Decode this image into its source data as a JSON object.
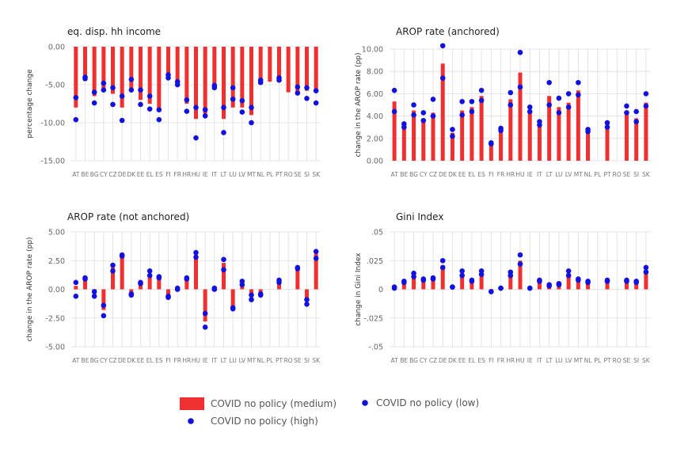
{
  "colors": {
    "bar": "#f03030",
    "dot": "#1212e0",
    "grid": "#dddddd"
  },
  "countries": [
    "AT",
    "BE",
    "BG",
    "CY",
    "CZ",
    "DE",
    "DK",
    "EE",
    "EL",
    "ES",
    "FI",
    "FR",
    "HR",
    "HU",
    "IE",
    "IT",
    "LT",
    "LU",
    "LV",
    "MT",
    "NL",
    "PL",
    "PT",
    "RO",
    "SE",
    "SI",
    "SK"
  ],
  "legend": {
    "medium": "COVID no policy (medium)",
    "low": "COVID no policy (low)",
    "high": "COVID no policy (high)"
  },
  "chart_data": [
    {
      "type": "bar",
      "title": "eq. disp. hh income",
      "xlabel": "",
      "ylabel": "percentage change",
      "ylim": [
        -15,
        0
      ],
      "yticks": [
        0,
        -5,
        -10,
        -15
      ],
      "ytick_labels": [
        "0.00",
        "-5.00",
        "-10.00",
        "-15.00"
      ],
      "grid": true,
      "categories": [
        "AT",
        "BE",
        "BG",
        "CY",
        "CZ",
        "DE",
        "DK",
        "EE",
        "EL",
        "ES",
        "FI",
        "FR",
        "HR",
        "HU",
        "IE",
        "IT",
        "LT",
        "LU",
        "LV",
        "MT",
        "NL",
        "PL",
        "PT",
        "RO",
        "SE",
        "SI",
        "SK"
      ],
      "series": [
        {
          "name": "COVID no policy (medium)",
          "values": [
            -8.0,
            -4.5,
            -6.5,
            -5.5,
            -6.2,
            -8.0,
            -5.5,
            -7.0,
            -7.5,
            -8.5,
            -4.0,
            -5.0,
            -7.5,
            -9.5,
            -8.8,
            -5.5,
            -9.5,
            -8.0,
            -8.0,
            -9.0,
            -5.0,
            -4.6,
            -4.3,
            -6.0,
            -6.2,
            -5.8,
            -6.0
          ]
        },
        {
          "name": "COVID no policy (low)",
          "values": [
            -6.7,
            -4.0,
            -6.0,
            -4.8,
            -5.4,
            -6.5,
            -4.3,
            -5.7,
            -6.5,
            -8.3,
            -3.7,
            -4.6,
            -7.0,
            -8.0,
            -8.3,
            -5.1,
            -8.0,
            -5.4,
            -7.1,
            -8.0,
            -4.4,
            null,
            -4.1,
            null,
            -5.3,
            -5.4,
            -5.8
          ]
        },
        {
          "name": "COVID no policy (high)",
          "values": [
            -9.6,
            -4.2,
            -7.4,
            -5.7,
            -7.6,
            -9.7,
            -5.7,
            -7.6,
            -8.2,
            -9.6,
            -4.1,
            -5.0,
            -8.5,
            -12.0,
            -9.1,
            -5.4,
            -11.3,
            -6.9,
            -8.6,
            -10.0,
            -4.7,
            null,
            -4.4,
            null,
            -6.1,
            -6.8,
            -7.4
          ]
        }
      ]
    },
    {
      "type": "bar",
      "title": "AROP rate (anchored)",
      "xlabel": "",
      "ylabel": "change in the AROP rate (pp)",
      "ylim": [
        0,
        10
      ],
      "yticks": [
        0,
        2,
        4,
        6,
        8,
        10
      ],
      "ytick_labels": [
        "0.00",
        "2.00",
        "4.00",
        "6.00",
        "8.00",
        "10.00"
      ],
      "grid": true,
      "categories": [
        "AT",
        "BE",
        "BG",
        "CY",
        "CZ",
        "DE",
        "DK",
        "EE",
        "EL",
        "ES",
        "FI",
        "FR",
        "HR",
        "HU",
        "IE",
        "IT",
        "LT",
        "LU",
        "LV",
        "MT",
        "NL",
        "PL",
        "PT",
        "RO",
        "SE",
        "SI",
        "SK"
      ],
      "series": [
        {
          "name": "COVID no policy (medium)",
          "values": [
            5.3,
            2.9,
            4.5,
            3.5,
            4.3,
            8.7,
            2.5,
            4.5,
            4.8,
            5.8,
            1.4,
            2.7,
            5.5,
            7.9,
            4.5,
            3.3,
            5.8,
            4.8,
            5.2,
            6.3,
            2.7,
            null,
            3.3,
            null,
            4.4,
            3.8,
            5.2
          ]
        },
        {
          "name": "COVID no policy (low)",
          "values": [
            4.4,
            3.0,
            4.1,
            3.6,
            4.0,
            7.4,
            2.2,
            4.1,
            4.4,
            5.4,
            1.5,
            2.7,
            5.0,
            6.6,
            4.4,
            3.2,
            5.0,
            4.3,
            4.8,
            5.9,
            2.6,
            null,
            3.0,
            null,
            4.3,
            3.5,
            4.9
          ]
        },
        {
          "name": "COVID no policy (high)",
          "values": [
            6.3,
            3.3,
            5.0,
            4.3,
            5.5,
            10.3,
            2.8,
            5.3,
            5.3,
            6.3,
            1.6,
            2.9,
            6.1,
            9.7,
            4.8,
            3.5,
            7.0,
            5.6,
            6.0,
            7.0,
            2.8,
            null,
            3.4,
            null,
            4.9,
            4.4,
            6.0
          ]
        }
      ]
    },
    {
      "type": "bar",
      "title": "AROP rate (not anchored)",
      "xlabel": "",
      "ylabel": "change in the AROP rate (pp)",
      "ylim": [
        -5,
        5
      ],
      "yticks": [
        5,
        2.5,
        0,
        -2.5,
        -5
      ],
      "ytick_labels": [
        "5.00",
        "2.50",
        "0.00",
        "-2.50",
        "-5.00"
      ],
      "grid": true,
      "categories": [
        "AT",
        "BE",
        "BG",
        "CY",
        "CZ",
        "DE",
        "DK",
        "EE",
        "EL",
        "ES",
        "FI",
        "FR",
        "HR",
        "HU",
        "IE",
        "IT",
        "LT",
        "LU",
        "LV",
        "MT",
        "NL",
        "PL",
        "PT",
        "RO",
        "SE",
        "SI",
        "SK"
      ],
      "series": [
        {
          "name": "COVID no policy (medium)",
          "values": [
            0.3,
            0.9,
            -0.4,
            -1.8,
            1.9,
            2.8,
            -0.3,
            0.4,
            1.3,
            0.9,
            -0.6,
            0.0,
            1.0,
            3.0,
            -2.8,
            0.0,
            2.3,
            -1.6,
            0.4,
            -0.7,
            -0.4,
            null,
            0.6,
            null,
            1.9,
            -1.0,
            3.1
          ]
        },
        {
          "name": "COVID no policy (low)",
          "values": [
            0.6,
            0.9,
            -0.2,
            -1.4,
            1.6,
            2.9,
            -0.4,
            0.5,
            1.2,
            1.1,
            -0.6,
            0.0,
            1.0,
            2.8,
            -2.1,
            0.0,
            1.7,
            -1.7,
            0.7,
            -0.5,
            -0.4,
            null,
            0.6,
            null,
            1.9,
            -0.9,
            2.7
          ]
        },
        {
          "name": "COVID no policy (high)",
          "values": [
            -0.6,
            1.0,
            -0.6,
            -2.3,
            2.1,
            3.0,
            -0.5,
            0.6,
            1.6,
            1.0,
            -0.7,
            0.1,
            0.9,
            3.2,
            -3.3,
            0.1,
            2.6,
            -1.6,
            0.4,
            -0.9,
            -0.5,
            null,
            0.8,
            null,
            1.8,
            -1.3,
            3.3
          ]
        }
      ]
    },
    {
      "type": "bar",
      "title": "Gini Index",
      "xlabel": "",
      "ylabel": "change in Gini Index",
      "ylim": [
        -0.05,
        0.05
      ],
      "yticks": [
        0.05,
        0.025,
        0,
        -0.025,
        -0.05
      ],
      "ytick_labels": [
        ".05",
        ".025",
        "0",
        "-.025",
        "-.05"
      ],
      "grid": true,
      "categories": [
        "AT",
        "BE",
        "BG",
        "CY",
        "CZ",
        "DE",
        "DK",
        "EE",
        "EL",
        "ES",
        "FI",
        "FR",
        "HR",
        "HU",
        "IE",
        "IT",
        "LT",
        "LU",
        "LV",
        "MT",
        "NL",
        "PL",
        "PT",
        "RO",
        "SE",
        "SI",
        "SK"
      ],
      "series": [
        {
          "name": "COVID no policy (medium)",
          "values": [
            0.002,
            0.006,
            0.012,
            0.008,
            0.009,
            0.021,
            0.002,
            0.014,
            0.007,
            0.014,
            -0.002,
            0.001,
            0.013,
            0.025,
            0.001,
            0.007,
            0.004,
            0.004,
            0.014,
            0.008,
            0.006,
            null,
            0.007,
            null,
            0.007,
            0.006,
            0.017
          ]
        },
        {
          "name": "COVID no policy (low)",
          "values": [
            0.001,
            0.006,
            0.011,
            0.008,
            0.009,
            0.019,
            0.002,
            0.012,
            0.007,
            0.013,
            -0.002,
            0.001,
            0.012,
            0.022,
            0.001,
            0.007,
            0.003,
            0.004,
            0.012,
            0.008,
            0.006,
            null,
            0.007,
            null,
            0.007,
            0.006,
            0.015
          ]
        },
        {
          "name": "COVID no policy (high)",
          "values": [
            0.002,
            0.007,
            0.014,
            0.009,
            0.01,
            0.025,
            0.002,
            0.016,
            0.008,
            0.016,
            -0.002,
            0.001,
            0.015,
            0.03,
            0.001,
            0.008,
            0.004,
            0.005,
            0.016,
            0.009,
            0.007,
            null,
            0.008,
            null,
            0.008,
            0.007,
            0.019
          ]
        }
      ]
    }
  ]
}
